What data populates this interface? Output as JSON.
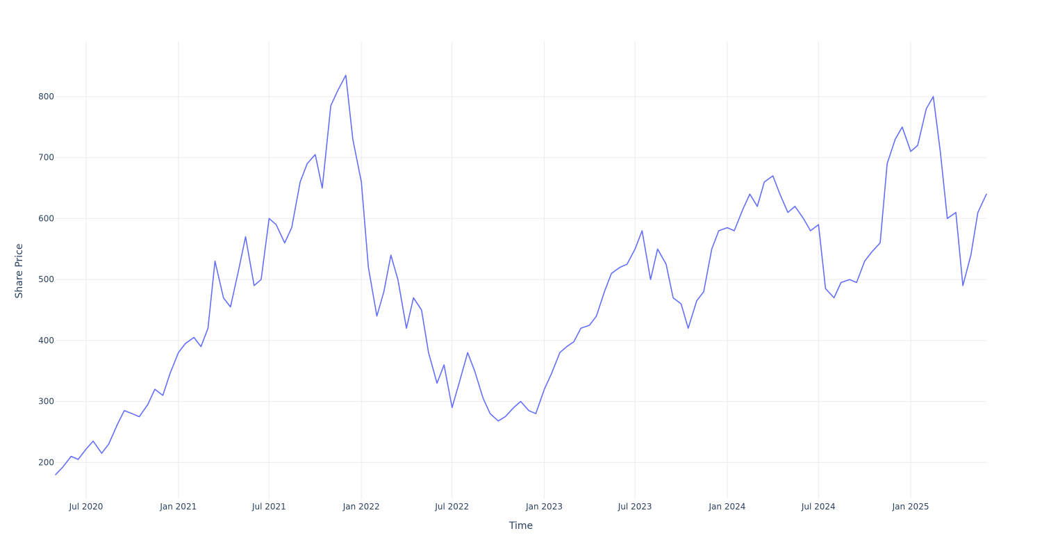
{
  "chart_data": {
    "type": "line",
    "title": "",
    "xlabel": "Time",
    "ylabel": "Share Price",
    "grid": true,
    "legend": "none",
    "xlim": [
      "2020-05-01",
      "2025-06-01"
    ],
    "ylim": [
      140,
      890
    ],
    "x_ticks": [
      {
        "date": "2020-07-01",
        "label": "Jul 2020"
      },
      {
        "date": "2021-01-01",
        "label": "Jan 2021"
      },
      {
        "date": "2021-07-01",
        "label": "Jul 2021"
      },
      {
        "date": "2022-01-01",
        "label": "Jan 2022"
      },
      {
        "date": "2022-07-01",
        "label": "Jul 2022"
      },
      {
        "date": "2023-01-01",
        "label": "Jan 2023"
      },
      {
        "date": "2023-07-01",
        "label": "Jul 2023"
      },
      {
        "date": "2024-01-01",
        "label": "Jan 2024"
      },
      {
        "date": "2024-07-01",
        "label": "Jul 2024"
      },
      {
        "date": "2025-01-01",
        "label": "Jan 2025"
      }
    ],
    "y_ticks": [
      200,
      300,
      400,
      500,
      600,
      700,
      800
    ],
    "series": [
      {
        "color": "#636efa",
        "x": [
          "2020-05-01",
          "2020-05-15",
          "2020-06-01",
          "2020-06-15",
          "2020-07-01",
          "2020-07-15",
          "2020-08-01",
          "2020-08-15",
          "2020-09-01",
          "2020-09-15",
          "2020-10-01",
          "2020-10-15",
          "2020-11-01",
          "2020-11-15",
          "2020-12-01",
          "2020-12-15",
          "2021-01-01",
          "2021-01-15",
          "2021-02-01",
          "2021-02-15",
          "2021-03-01",
          "2021-03-15",
          "2021-04-01",
          "2021-04-15",
          "2021-05-01",
          "2021-05-15",
          "2021-06-01",
          "2021-06-15",
          "2021-07-01",
          "2021-07-15",
          "2021-08-01",
          "2021-08-15",
          "2021-09-01",
          "2021-09-15",
          "2021-10-01",
          "2021-10-15",
          "2021-11-01",
          "2021-11-15",
          "2021-12-01",
          "2021-12-15",
          "2022-01-01",
          "2022-01-15",
          "2022-02-01",
          "2022-02-15",
          "2022-03-01",
          "2022-03-15",
          "2022-04-01",
          "2022-04-15",
          "2022-05-01",
          "2022-05-15",
          "2022-06-01",
          "2022-06-15",
          "2022-07-01",
          "2022-07-15",
          "2022-08-01",
          "2022-08-15",
          "2022-09-01",
          "2022-09-15",
          "2022-10-01",
          "2022-10-15",
          "2022-11-01",
          "2022-11-15",
          "2022-12-01",
          "2022-12-15",
          "2023-01-01",
          "2023-01-15",
          "2023-02-01",
          "2023-02-15",
          "2023-03-01",
          "2023-03-15",
          "2023-04-01",
          "2023-04-15",
          "2023-05-01",
          "2023-05-15",
          "2023-06-01",
          "2023-06-15",
          "2023-07-01",
          "2023-07-15",
          "2023-08-01",
          "2023-08-15",
          "2023-09-01",
          "2023-09-15",
          "2023-10-01",
          "2023-10-15",
          "2023-11-01",
          "2023-11-15",
          "2023-12-01",
          "2023-12-15",
          "2024-01-01",
          "2024-01-15",
          "2024-02-01",
          "2024-02-15",
          "2024-03-01",
          "2024-03-15",
          "2024-04-01",
          "2024-04-15",
          "2024-05-01",
          "2024-05-15",
          "2024-06-01",
          "2024-06-15",
          "2024-07-01",
          "2024-07-15",
          "2024-08-01",
          "2024-08-15",
          "2024-09-01",
          "2024-09-15",
          "2024-10-01",
          "2024-10-15",
          "2024-11-01",
          "2024-11-15",
          "2024-12-01",
          "2024-12-15",
          "2025-01-01",
          "2025-01-15",
          "2025-02-01",
          "2025-02-15",
          "2025-03-01",
          "2025-03-15",
          "2025-04-01",
          "2025-04-15",
          "2025-05-01",
          "2025-05-15",
          "2025-06-01"
        ],
        "y": [
          180,
          192,
          210,
          205,
          222,
          235,
          215,
          230,
          262,
          285,
          280,
          275,
          295,
          320,
          310,
          345,
          380,
          395,
          405,
          390,
          420,
          530,
          470,
          455,
          515,
          570,
          490,
          500,
          600,
          590,
          560,
          585,
          660,
          690,
          705,
          650,
          785,
          810,
          835,
          730,
          660,
          520,
          440,
          480,
          540,
          500,
          420,
          470,
          450,
          380,
          330,
          360,
          290,
          330,
          380,
          350,
          305,
          280,
          268,
          275,
          290,
          300,
          285,
          280,
          320,
          345,
          380,
          390,
          398,
          420,
          425,
          440,
          480,
          510,
          520,
          525,
          550,
          580,
          500,
          550,
          525,
          470,
          460,
          420,
          465,
          480,
          550,
          580,
          585,
          580,
          615,
          640,
          620,
          660,
          670,
          640,
          610,
          620,
          600,
          580,
          590,
          485,
          470,
          495,
          500,
          495,
          530,
          545,
          560,
          690,
          730,
          750,
          710,
          720,
          780,
          800,
          710,
          600,
          610,
          490,
          540,
          610,
          640
        ]
      }
    ]
  }
}
